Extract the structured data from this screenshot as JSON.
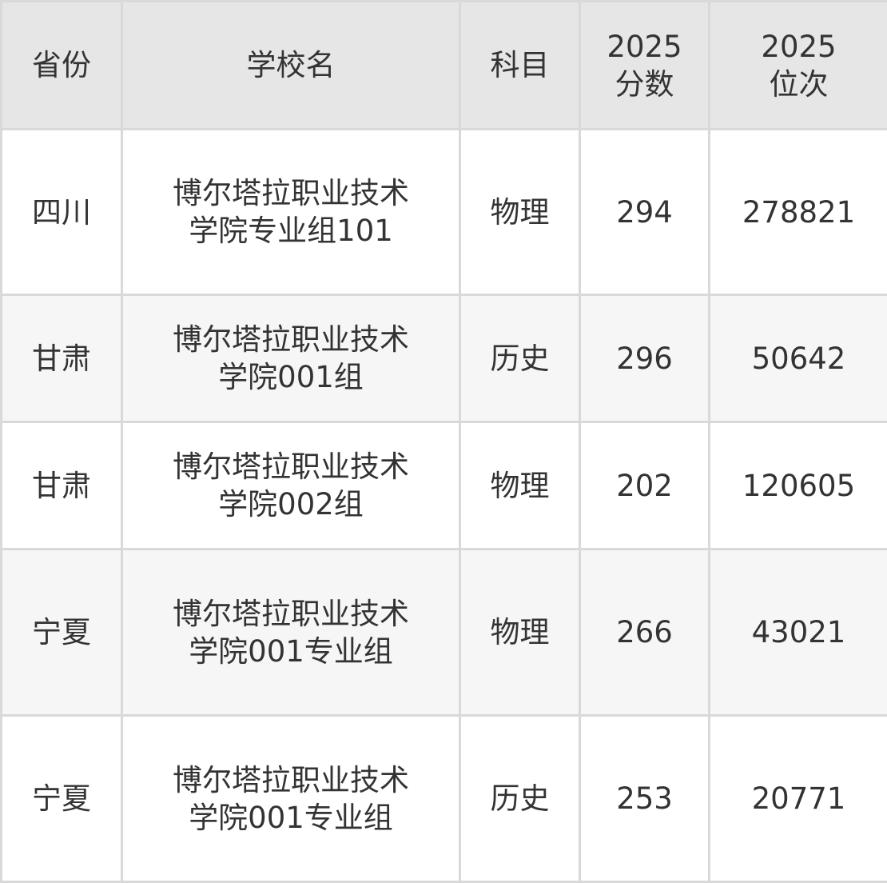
{
  "headers": [
    "省份",
    "学校名",
    "科目",
    "2025\n分数",
    "2025\n位次"
  ],
  "header_lines": [
    [
      "省份"
    ],
    [
      "学校名"
    ],
    [
      "科目"
    ],
    [
      "2025",
      "分数"
    ],
    [
      "2025",
      "位次"
    ]
  ],
  "rows": [
    {
      "province": "四川",
      "school": "博尔塔拉职业技术学院专业组101",
      "subject": "物理",
      "score": "294",
      "rank": "278821"
    },
    {
      "province": "甘肃",
      "school": "博尔塔拉职业技术学院001组",
      "subject": "历史",
      "score": "296",
      "rank": "50642"
    },
    {
      "province": "甘肃",
      "school": "博尔塔拉职业技术学院002组",
      "subject": "物理",
      "score": "202",
      "rank": "120605"
    },
    {
      "province": "宁夏",
      "school": "博尔塔拉职业技术学院001专业组",
      "subject": "物理",
      "score": "266",
      "rank": "43021"
    },
    {
      "province": "宁夏",
      "school": "博尔塔拉职业技术学院001专业组",
      "subject": "历史",
      "score": "253",
      "rank": "20771"
    }
  ]
}
